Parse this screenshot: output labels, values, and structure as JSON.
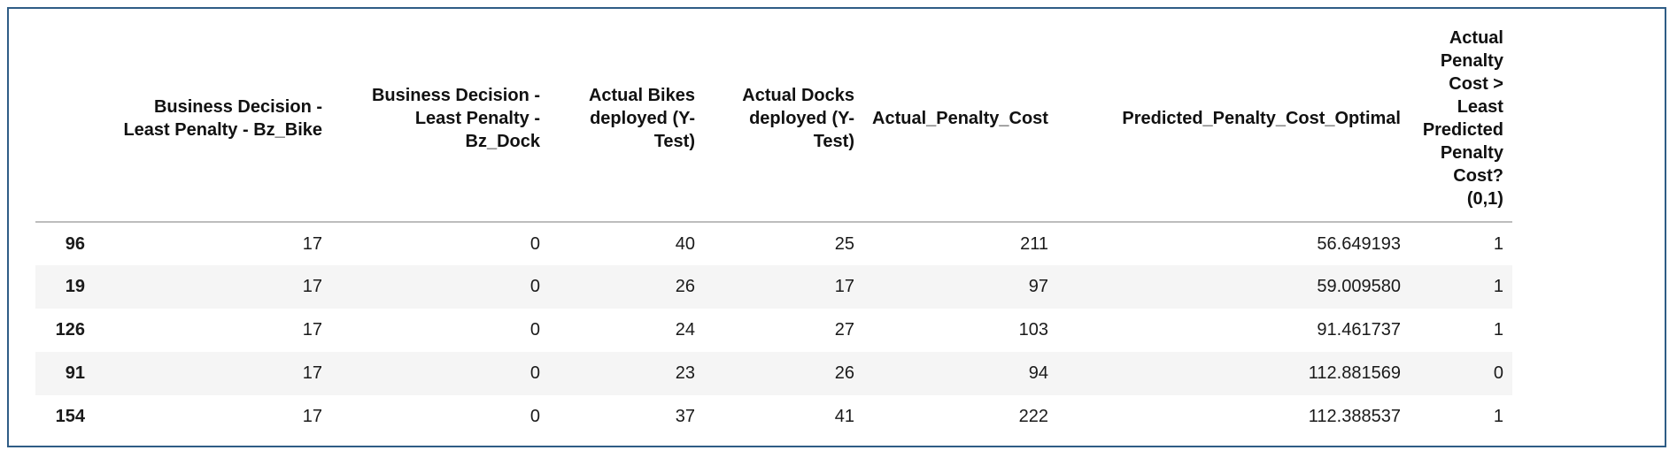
{
  "columns": [
    "",
    "Business Decision -\nLeast Penalty - Bz_Bike",
    "Business Decision -\nLeast Penalty - Bz_Dock",
    "Actual Bikes\ndeployed (Y-\nTest)",
    "Actual Docks\ndeployed (Y-\nTest)",
    "Actual_Penalty_Cost",
    "Predicted_Penalty_Cost_Optimal",
    "Actual\nPenalty\nCost >\nLeast\nPredicted\nPenalty\nCost?\n(0,1)"
  ],
  "rows": [
    {
      "index": "96",
      "values": [
        "17",
        "0",
        "40",
        "25",
        "211",
        "56.649193",
        "1"
      ]
    },
    {
      "index": "19",
      "values": [
        "17",
        "0",
        "26",
        "17",
        "97",
        "59.009580",
        "1"
      ]
    },
    {
      "index": "126",
      "values": [
        "17",
        "0",
        "24",
        "27",
        "103",
        "91.461737",
        "1"
      ]
    },
    {
      "index": "91",
      "values": [
        "17",
        "0",
        "23",
        "26",
        "94",
        "112.881569",
        "0"
      ]
    },
    {
      "index": "154",
      "values": [
        "17",
        "0",
        "37",
        "41",
        "222",
        "112.388537",
        "1"
      ]
    }
  ]
}
